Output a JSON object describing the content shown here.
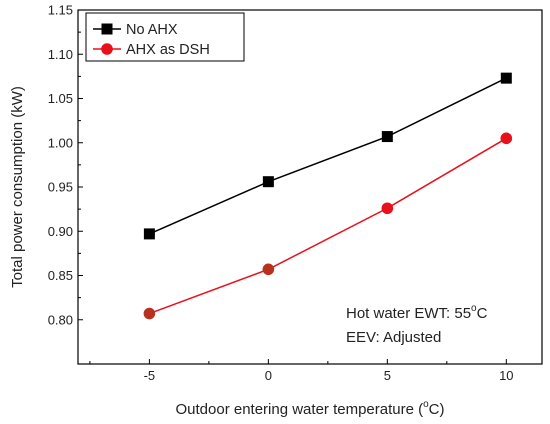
{
  "chart_data": {
    "type": "line",
    "x": [
      -5,
      0,
      5,
      10
    ],
    "xlabel_main": "Outdoor entering water temperature (",
    "xlabel_sup": "o",
    "xlabel_tail": "C)",
    "ylabel": "Total power consumption (kW)",
    "xlim": [
      -8,
      11.5
    ],
    "ylim": [
      0.75,
      1.15
    ],
    "xticks": [
      -5,
      0,
      5,
      10
    ],
    "xtick_labels": [
      "-5",
      "0",
      "5",
      "10"
    ],
    "yticks": [
      0.8,
      0.85,
      0.9,
      0.95,
      1.0,
      1.05,
      1.1,
      1.15
    ],
    "ytick_labels": [
      "0.80",
      "0.85",
      "0.90",
      "0.95",
      "1.00",
      "1.05",
      "1.10",
      "1.15"
    ],
    "series": [
      {
        "name": "No AHX",
        "values": [
          0.897,
          0.956,
          1.007,
          1.073
        ],
        "color": "#000000",
        "line_color": "#000000",
        "marker": "square"
      },
      {
        "name": "AHX as DSH",
        "values": [
          0.807,
          0.857,
          0.926,
          1.005
        ],
        "color": "#e8101a",
        "line_color": "#e8101a",
        "marker": "circle"
      }
    ],
    "legend_position": "top-left",
    "annotation_line1_main": "Hot water EWT: 55",
    "annotation_line1_sup": "o",
    "annotation_line1_tail": "C",
    "annotation_line2": "EEV: Adjusted",
    "grid": false
  }
}
